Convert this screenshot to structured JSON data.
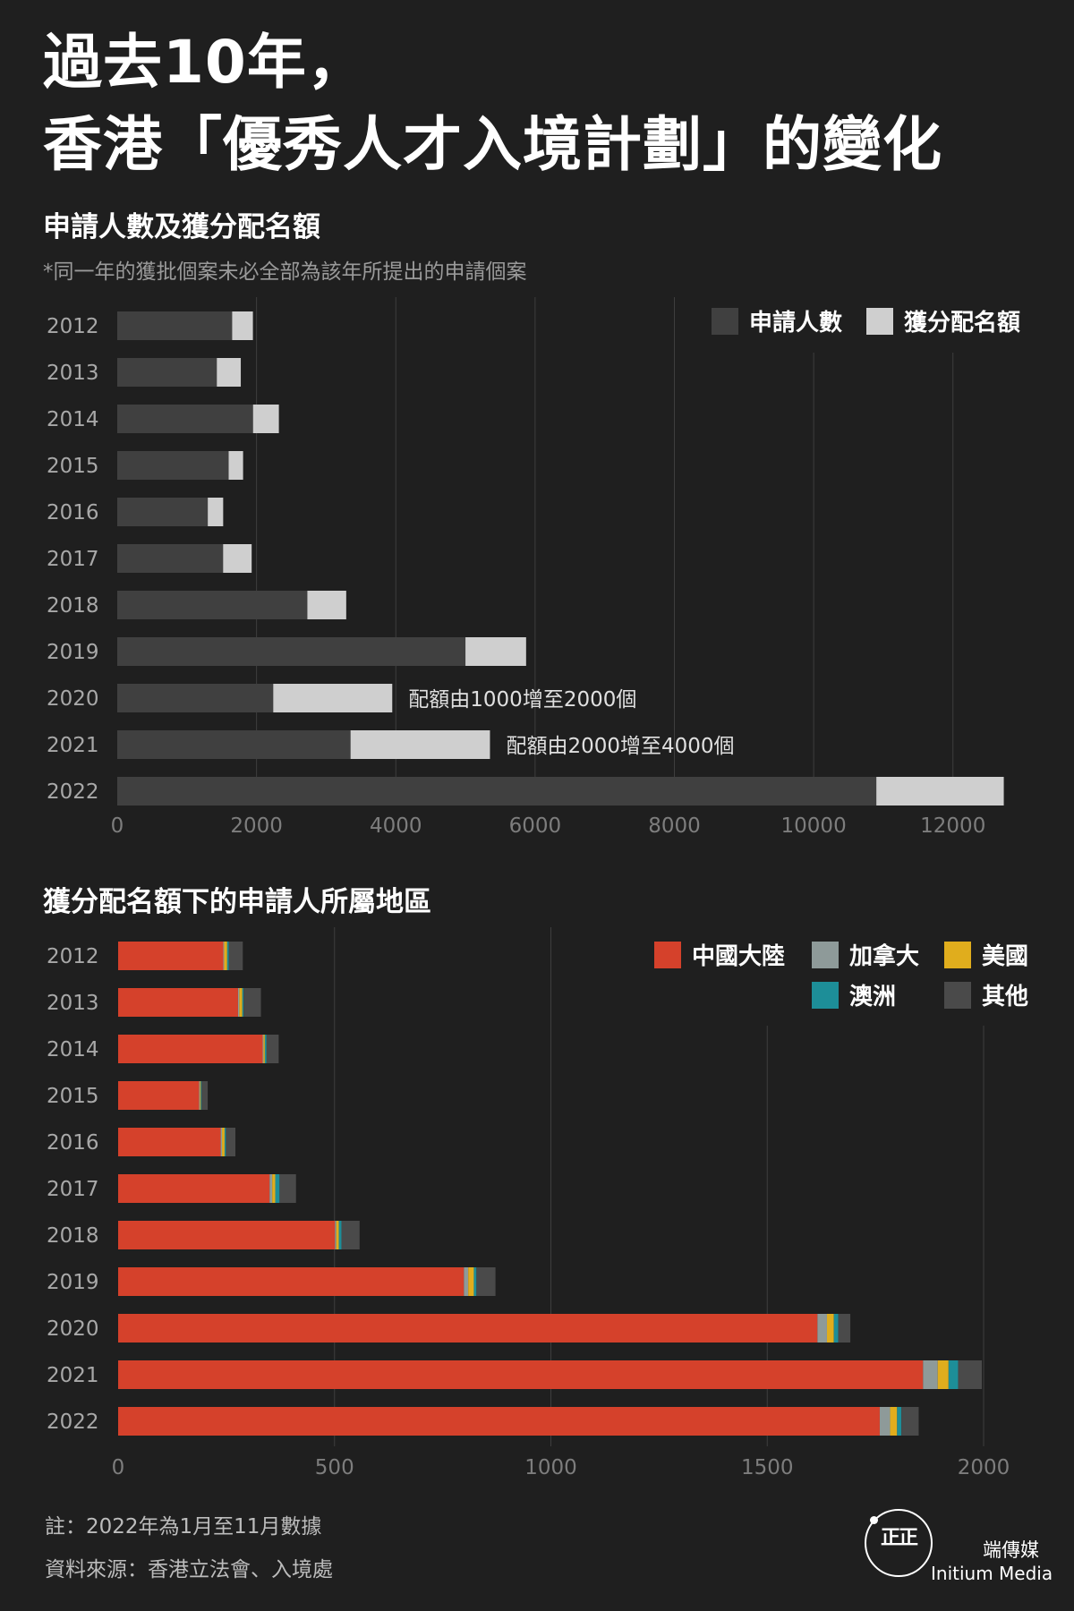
{
  "header": {
    "title_line1": "過去10年，",
    "title_line2": "香港「優秀人才入境計劃」的變化"
  },
  "colors": {
    "background": "#1f1f1f",
    "applicants": "#404040",
    "quota": "#cfcfcf",
    "mainland": "#d5412b",
    "canada": "#8e9a99",
    "usa": "#e0ad1d",
    "australia": "#1d8e98",
    "other": "#4a4a4a"
  },
  "chart_data": [
    {
      "type": "bar",
      "orientation": "horizontal",
      "stacked": true,
      "title": "申請人數及獲分配名額",
      "subtitle": "*同一年的獲批個案未必全部為該年所提出的申請個案",
      "categories": [
        "2012",
        "2013",
        "2014",
        "2015",
        "2016",
        "2017",
        "2018",
        "2019",
        "2020",
        "2021",
        "2022"
      ],
      "series": [
        {
          "name": "申請人數",
          "values": [
            1650,
            1430,
            1950,
            1600,
            1300,
            1520,
            2730,
            5000,
            2240,
            3350,
            10900
          ]
        },
        {
          "name": "獲分配名額",
          "values": [
            298,
            344,
            371,
            207,
            221,
            410,
            558,
            871,
            1709,
            2002,
            1830
          ]
        }
      ],
      "xlim": [
        0,
        12800
      ],
      "ticks": [
        0,
        2000,
        4000,
        6000,
        8000,
        10000,
        12000
      ],
      "legend_position": "top-right",
      "grid": true,
      "annotations": [
        {
          "category": "2020",
          "text": "配額由1000增至2000個"
        },
        {
          "category": "2021",
          "text": "配額由2000增至4000個"
        }
      ]
    },
    {
      "type": "bar",
      "orientation": "horizontal",
      "stacked": true,
      "title": "獲分配名額下的申請人所屬地區",
      "categories": [
        "2012",
        "2013",
        "2014",
        "2015",
        "2016",
        "2017",
        "2018",
        "2019",
        "2020",
        "2021",
        "2022"
      ],
      "series": [
        {
          "name": "中國大陸",
          "values": [
            243,
            277,
            334,
            187,
            237,
            350,
            501,
            799,
            1616,
            1860,
            1760
          ]
        },
        {
          "name": "加拿大",
          "values": [
            2,
            3,
            2,
            2,
            3,
            6,
            3,
            10,
            22,
            34,
            24
          ]
        },
        {
          "name": "美國",
          "values": [
            7,
            7,
            3,
            2,
            6,
            7,
            6,
            13,
            16,
            25,
            16
          ]
        },
        {
          "name": "澳洲",
          "values": [
            4,
            3,
            4,
            2,
            3,
            10,
            6,
            6,
            10,
            22,
            10
          ]
        },
        {
          "name": "其他",
          "values": [
            32,
            40,
            28,
            14,
            22,
            38,
            42,
            44,
            28,
            55,
            40
          ]
        }
      ],
      "xlim": [
        0,
        2000
      ],
      "ticks": [
        0,
        500,
        1000,
        1500,
        2000
      ],
      "legend_position": "top-right",
      "grid": true
    }
  ],
  "footer": {
    "note": "註：2022年為1月至11月數據",
    "source": "資料來源：香港立法會、入境處"
  },
  "brand": {
    "logo_text": "正正",
    "name_zh": "端傳媒",
    "name_en": "Initium Media"
  }
}
